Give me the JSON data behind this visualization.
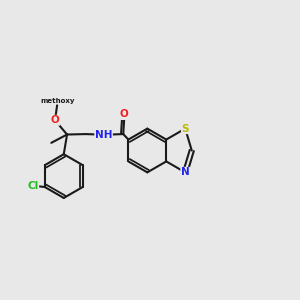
{
  "background_color": "#e8e8e8",
  "bond_color": "#1a1a1a",
  "bond_width": 1.5,
  "atom_colors": {
    "C": "#1a1a1a",
    "N": "#2222ee",
    "O": "#ee2222",
    "S": "#bbbb00",
    "Cl": "#22bb22"
  },
  "font_size": 7.5,
  "fig_size": [
    3.0,
    3.0
  ],
  "dpi": 100,
  "xlim": [
    -0.5,
    6.5
  ],
  "ylim": [
    -2.0,
    2.2
  ]
}
